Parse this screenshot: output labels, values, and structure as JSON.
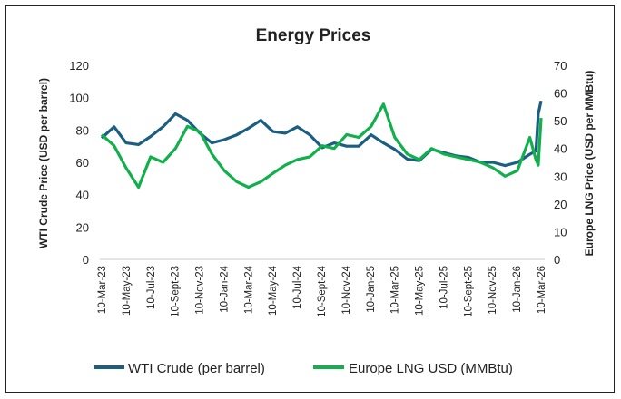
{
  "chart_data": {
    "type": "line",
    "title": "Energy Prices",
    "ylabel": "WTI Crude Price (USD per barrel)",
    "y2label": "Europe LNG Price (USD per MMBtu)",
    "ylim": [
      0,
      120
    ],
    "y2lim": [
      0,
      70
    ],
    "yticks": [
      0,
      20,
      40,
      60,
      80,
      100,
      120
    ],
    "y2ticks": [
      0,
      10,
      20,
      30,
      40,
      50,
      60,
      70
    ],
    "xtick_labels": [
      "10-Mar-23",
      "10-May-23",
      "10-Jul-23",
      "10-Sept-23",
      "10-Nov-23",
      "10-Jan-24",
      "10-Mar-24",
      "10-May-24",
      "10-Jul-24",
      "10-Sept-24",
      "10-Nov-24",
      "10-Jan-25",
      "10-Mar-25",
      "10-May-25",
      "10-Jul-25",
      "10-Sept-25",
      "10-Nov-25",
      "10-Jan-26",
      "10-Mar-26"
    ],
    "grid": false,
    "legend": "bottom",
    "x": [
      "2023-03-10",
      "2023-04-10",
      "2023-05-10",
      "2023-06-10",
      "2023-07-10",
      "2023-08-10",
      "2023-09-10",
      "2023-10-10",
      "2023-11-10",
      "2023-12-10",
      "2024-01-10",
      "2024-02-10",
      "2024-03-10",
      "2024-04-10",
      "2024-05-10",
      "2024-06-10",
      "2024-07-10",
      "2024-08-10",
      "2024-09-10",
      "2024-10-10",
      "2024-11-10",
      "2024-12-10",
      "2025-01-10",
      "2025-02-10",
      "2025-03-10",
      "2025-04-10",
      "2025-05-10",
      "2025-06-10",
      "2025-07-10",
      "2025-08-10",
      "2025-09-10",
      "2025-10-10",
      "2025-11-10",
      "2025-12-10",
      "2026-01-10",
      "2026-02-10",
      "2026-02-25",
      "2026-03-03",
      "2026-03-10"
    ],
    "series": [
      {
        "name": "WTI Crude (per barrel)",
        "axis": "left",
        "color": "#1b5e82",
        "values": [
          75,
          82,
          72,
          71,
          76,
          82,
          90,
          86,
          78,
          72,
          74,
          77,
          81,
          86,
          79,
          78,
          82,
          77,
          69,
          72,
          70,
          70,
          77,
          72,
          68,
          62,
          61,
          68,
          66,
          64,
          63,
          60,
          60,
          58,
          60,
          65,
          67,
          90,
          98
        ]
      },
      {
        "name": "Europe LNG USD (MMBtu)",
        "axis": "right",
        "color": "#12b04c",
        "values": [
          45,
          41,
          33,
          26,
          37,
          35,
          40,
          48,
          46,
          38,
          32,
          28,
          26,
          28,
          31,
          34,
          36,
          37,
          41,
          40,
          45,
          44,
          48,
          56,
          44,
          38,
          36,
          40,
          38,
          37,
          36,
          35,
          33,
          30,
          32,
          44,
          36,
          34,
          51
        ]
      }
    ]
  }
}
